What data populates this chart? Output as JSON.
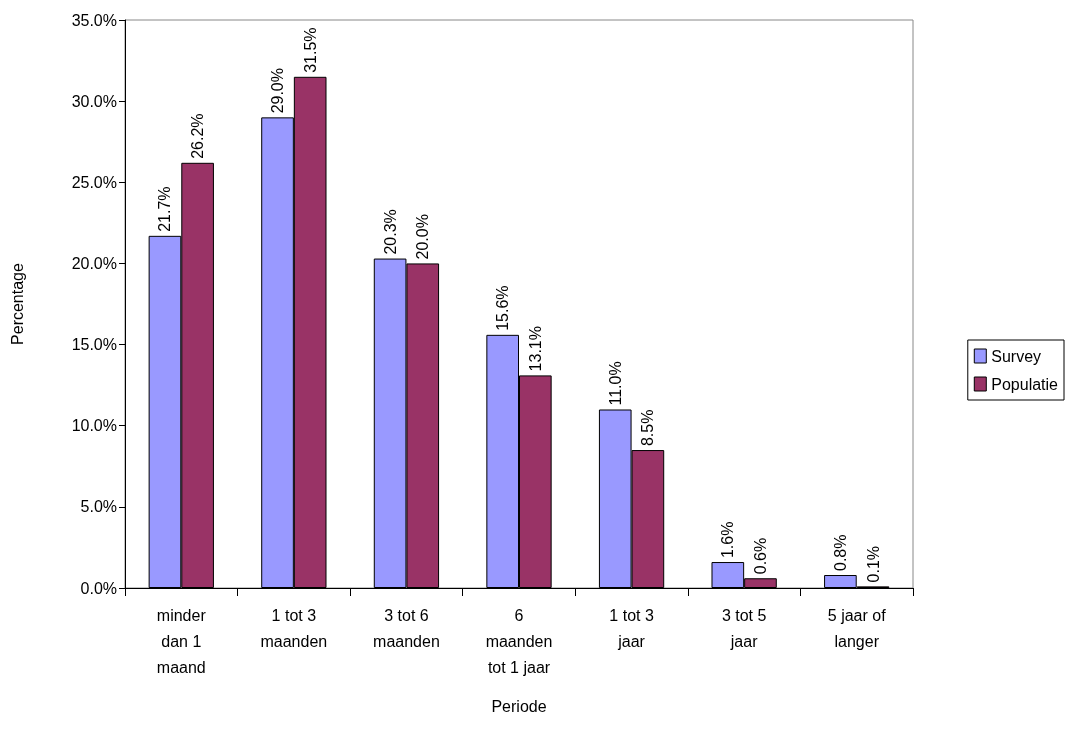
{
  "chart_data": {
    "type": "bar",
    "xlabel": "Periode",
    "ylabel": "Percentage",
    "categories": [
      "minder\ndan 1\nmaand",
      "1 tot 3\nmaanden",
      "3 tot 6\nmaanden",
      "6\nmaanden\ntot 1 jaar",
      "1 tot 3\njaar",
      "3 tot 5\njaar",
      "5 jaar of\nlanger"
    ],
    "series": [
      {
        "name": "Survey",
        "color": "#9999ff",
        "values": [
          21.7,
          29.0,
          20.3,
          15.6,
          11.0,
          1.6,
          0.8
        ],
        "value_labels": [
          "21.7%",
          "29.0%",
          "20.3%",
          "15.6%",
          "11.0%",
          "1.6%",
          "0.8%"
        ]
      },
      {
        "name": "Populatie",
        "color": "#993366",
        "values": [
          26.2,
          31.5,
          20.0,
          13.1,
          8.5,
          0.6,
          0.1
        ],
        "value_labels": [
          "26.2%",
          "31.5%",
          "20.0%",
          "13.1%",
          "8.5%",
          "0.6%",
          "0.1%"
        ]
      }
    ],
    "ylim": [
      0,
      35
    ],
    "yticks": [
      {
        "value": 0,
        "label": "0.0%"
      },
      {
        "value": 5,
        "label": "5.0%"
      },
      {
        "value": 10,
        "label": "10.0%"
      },
      {
        "value": 15,
        "label": "15.0%"
      },
      {
        "value": 20,
        "label": "20.0%"
      },
      {
        "value": 25,
        "label": "25.0%"
      },
      {
        "value": 30,
        "label": "30.0%"
      },
      {
        "value": 35,
        "label": "35.0%"
      }
    ],
    "grid": false,
    "legend": "right"
  }
}
